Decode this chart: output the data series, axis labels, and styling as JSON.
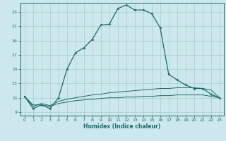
{
  "xlabel": "Humidex (Indice chaleur)",
  "background_color": "#cde8ec",
  "grid_color": "#aacccc",
  "line_color": "#1a6b6b",
  "xlim": [
    -0.5,
    23.5
  ],
  "ylim": [
    8.5,
    24.3
  ],
  "xticks": [
    0,
    1,
    2,
    3,
    4,
    5,
    6,
    7,
    8,
    9,
    10,
    11,
    12,
    13,
    14,
    15,
    16,
    17,
    18,
    19,
    20,
    21,
    22,
    23
  ],
  "yticks": [
    9,
    11,
    13,
    15,
    17,
    19,
    21,
    23
  ],
  "line1_x": [
    0,
    1,
    2,
    3,
    4,
    5,
    6,
    7,
    8,
    9,
    10,
    11,
    12,
    13,
    14,
    15,
    16,
    17,
    18,
    19,
    20,
    21,
    22,
    23
  ],
  "line1_y": [
    11.2,
    9.5,
    10.0,
    9.5,
    11.0,
    15.0,
    17.3,
    18.0,
    19.2,
    21.2,
    21.3,
    23.5,
    24.0,
    23.3,
    23.3,
    22.8,
    20.8,
    14.3,
    13.5,
    12.8,
    12.3,
    12.3,
    11.5,
    11.0
  ],
  "line2_x": [
    0,
    1,
    2,
    3,
    4,
    5,
    6,
    7,
    8,
    9,
    10,
    11,
    12,
    13,
    14,
    15,
    16,
    17,
    18,
    19,
    20,
    21,
    22,
    23
  ],
  "line2_y": [
    11.2,
    9.8,
    10.2,
    9.9,
    10.5,
    10.8,
    11.0,
    11.2,
    11.4,
    11.5,
    11.7,
    11.8,
    11.9,
    12.0,
    12.1,
    12.2,
    12.3,
    12.3,
    12.4,
    12.4,
    12.4,
    12.3,
    12.1,
    11.0
  ],
  "line3_x": [
    0,
    1,
    2,
    3,
    4,
    5,
    6,
    7,
    8,
    9,
    10,
    11,
    12,
    13,
    14,
    15,
    16,
    17,
    18,
    19,
    20,
    21,
    22,
    23
  ],
  "line3_y": [
    11.2,
    10.0,
    10.0,
    9.8,
    10.2,
    10.4,
    10.6,
    10.7,
    10.8,
    10.9,
    11.0,
    11.0,
    11.1,
    11.1,
    11.2,
    11.2,
    11.3,
    11.3,
    11.4,
    11.4,
    11.4,
    11.4,
    11.2,
    11.0
  ]
}
